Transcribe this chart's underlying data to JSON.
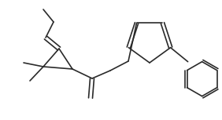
{
  "bg_color": "#ffffff",
  "line_color": "#2a2a2a",
  "line_width": 1.2,
  "figsize": [
    2.82,
    1.53
  ],
  "dpi": 100,
  "xlim": [
    0,
    282
  ],
  "ylim": [
    0,
    153
  ]
}
